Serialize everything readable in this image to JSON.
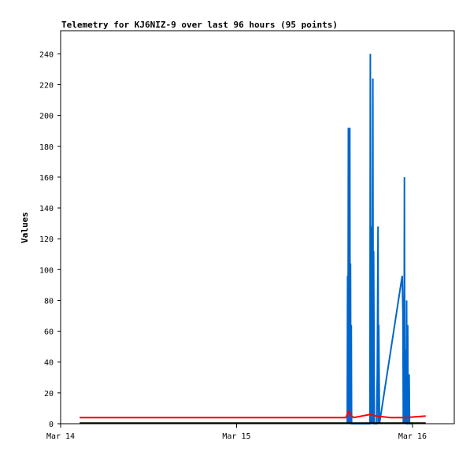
{
  "chart_data": {
    "type": "line",
    "title": "Telemetry for KJ6NIZ-9 over last 96 hours (95 points)",
    "xlabel": "",
    "ylabel": "Values",
    "x_tick_labels": [
      "Mar 14",
      "Mar 15",
      "Mar 16"
    ],
    "x_ticks_hours": [
      0,
      24,
      48
    ],
    "xlim_hours": [
      0,
      53.7
    ],
    "ylim": [
      0,
      255
    ],
    "y_ticks": [
      0,
      20,
      40,
      60,
      80,
      100,
      120,
      140,
      160,
      180,
      200,
      220,
      240
    ],
    "grid": false,
    "legend": "none",
    "series": [
      {
        "color": "#0066cc",
        "x_hours": [
          39.1,
          39.15,
          39.2,
          39.25,
          39.3,
          39.35,
          39.4,
          39.45,
          39.5,
          39.55,
          39.6,
          39.65,
          39.7,
          42.2,
          42.25,
          42.3,
          42.35,
          42.4,
          42.45,
          42.5,
          42.55,
          42.6,
          42.65,
          42.7,
          42.75,
          42.8,
          43.1,
          43.2,
          43.3,
          43.35,
          43.4,
          43.5,
          46.6,
          46.7,
          46.75,
          46.8,
          46.85,
          46.9,
          46.95,
          47.0,
          47.05,
          47.1,
          47.15,
          47.2,
          47.25,
          47.3,
          47.35,
          47.4,
          47.45,
          47.5,
          47.55,
          47.6,
          47.65,
          47.7,
          47.75,
          47.8,
          47.85,
          47.9
        ],
        "y": [
          0,
          96,
          0,
          192,
          0,
          97,
          0,
          192,
          0,
          104,
          0,
          64,
          0,
          0,
          240,
          0,
          120,
          64,
          128,
          0,
          144,
          224,
          0,
          112,
          64,
          0,
          0,
          32,
          128,
          0,
          64,
          0,
          96,
          72,
          0,
          24,
          0,
          160,
          0,
          48,
          0,
          40,
          0,
          80,
          0,
          0,
          64,
          0,
          32,
          0,
          32,
          0,
          0,
          0,
          0,
          0,
          0,
          0
        ]
      },
      {
        "color": "#ff0000",
        "x_hours": [
          2.6,
          38.9,
          39.1,
          39.3,
          39.7,
          40.0,
          42.2,
          43.0,
          45.0,
          47.0,
          49.8
        ],
        "y": [
          4,
          4,
          6,
          8,
          5,
          4,
          6,
          5,
          4,
          4,
          5
        ]
      },
      {
        "color": "#000000",
        "x_hours": [
          2.6,
          49.8
        ],
        "y": [
          0.4,
          0.4
        ]
      }
    ]
  }
}
